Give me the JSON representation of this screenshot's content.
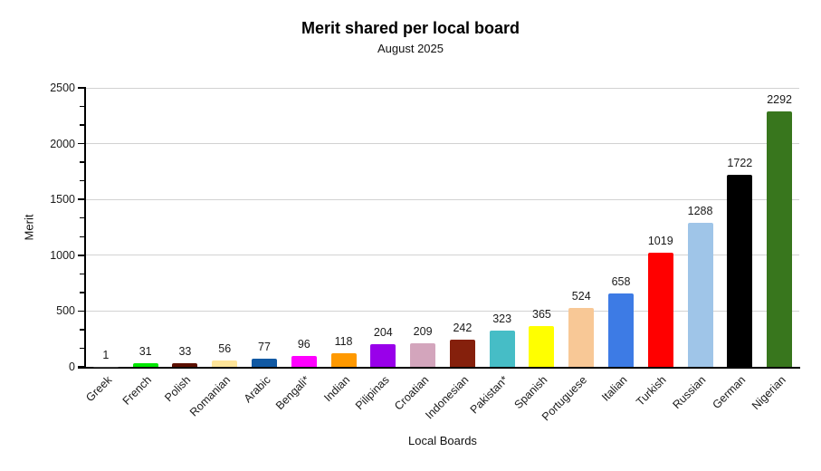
{
  "chart_data": {
    "type": "bar",
    "title": "Merit shared per local board",
    "subtitle": "August 2025",
    "xlabel": "Local Boards",
    "ylabel": "Merit",
    "ylim": [
      0,
      2500
    ],
    "y_major_step": 500,
    "y_minor_divisions_per_major": 3,
    "grid": true,
    "legend": "none",
    "categories": [
      "Greek",
      "French",
      "Polish",
      "Romanian",
      "Arabic",
      "Bengali*",
      "Indian",
      "Pilipinas",
      "Croatian",
      "Indonesian",
      "Pakistan*",
      "Spanish",
      "Portuguese",
      "Italian",
      "Turkish",
      "Russian",
      "German",
      "Nigerian"
    ],
    "values": [
      1,
      31,
      33,
      56,
      77,
      96,
      118,
      204,
      209,
      242,
      323,
      365,
      524,
      658,
      1019,
      1288,
      1722,
      2292
    ],
    "bar_colors": [
      "#434343",
      "#00E600",
      "#5B0F00",
      "#FFE599",
      "#1159A3",
      "#FF00FF",
      "#FF9900",
      "#9900EA",
      "#D3A5BC",
      "#85200C",
      "#46BDC6",
      "#FFFF00",
      "#F8C896",
      "#3D7BE5",
      "#FF0000",
      "#9FC5E8",
      "#000000",
      "#38761D"
    ],
    "colors": {
      "gridline": "#d2d2d2",
      "axis": "#000000",
      "tick_label": "#1a1a1a",
      "value_label": "#1a1a1a",
      "background": "#ffffff"
    }
  }
}
